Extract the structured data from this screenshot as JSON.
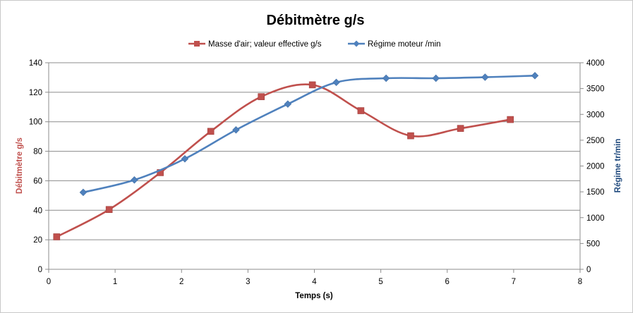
{
  "chart_data": {
    "type": "line",
    "title": "Débitmètre g/s",
    "xlabel": "Temps (s)",
    "ylabel_left": "Débitmètre g/s",
    "ylabel_right": "Régime tr/min",
    "xlim": [
      0,
      8
    ],
    "ylim_left": [
      0,
      140
    ],
    "ylim_right": [
      0,
      4000
    ],
    "x_ticks": [
      "0",
      "1",
      "2",
      "3",
      "4",
      "5",
      "6",
      "7",
      "8"
    ],
    "y_left_ticks": [
      "0",
      "20",
      "40",
      "60",
      "80",
      "100",
      "120",
      "140"
    ],
    "y_right_ticks": [
      "0",
      "500",
      "1000",
      "1500",
      "2000",
      "2500",
      "3000",
      "3500",
      "4000"
    ],
    "grid": "horizontal",
    "legend_position": "top",
    "series": [
      {
        "name": "Masse d'air; valeur effective g/s",
        "axis": "left",
        "color": "#c0504d",
        "marker": "square",
        "x": [
          0.12,
          0.91,
          1.68,
          2.44,
          3.2,
          3.97,
          4.7,
          5.45,
          6.2,
          6.95
        ],
        "y": [
          22,
          40.5,
          65.5,
          93.5,
          117,
          125,
          107.5,
          90.5,
          95.5,
          101.5
        ]
      },
      {
        "name": "Régime moteur /min",
        "axis": "right",
        "color": "#4f81bd",
        "marker": "diamond",
        "x": [
          0.52,
          1.29,
          2.05,
          2.82,
          3.6,
          4.33,
          5.08,
          5.83,
          6.57,
          7.32
        ],
        "y": [
          1490,
          1730,
          2140,
          2700,
          3200,
          3620,
          3700,
          3700,
          3720,
          3750
        ]
      }
    ]
  }
}
